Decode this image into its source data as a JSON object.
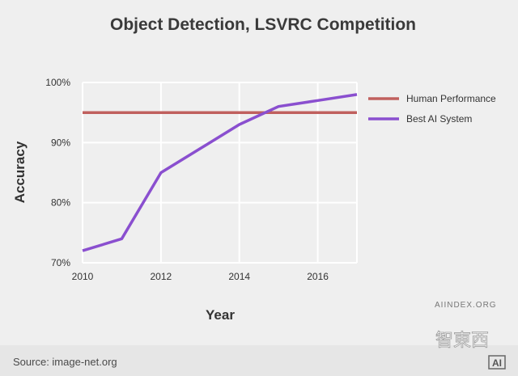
{
  "chart_data": {
    "type": "line",
    "title": "Object Detection, LSVRC Competition",
    "xlabel": "Year",
    "ylabel": "Accuracy",
    "xlim": [
      2010,
      2017
    ],
    "ylim": [
      70,
      100
    ],
    "x_ticks": [
      2010,
      2012,
      2014,
      2016
    ],
    "y_ticks": [
      70,
      80,
      90,
      100
    ],
    "x_tick_labels": [
      "2010",
      "2012",
      "2014",
      "2016"
    ],
    "y_tick_labels": [
      "70%",
      "80%",
      "90%",
      "100%"
    ],
    "grid": true,
    "legend_position": "right",
    "series": [
      {
        "name": "Human Performance",
        "color": "#c0605e",
        "x": [
          2010,
          2017
        ],
        "y": [
          95,
          95
        ]
      },
      {
        "name": "Best AI System",
        "color": "#8a4fcf",
        "x": [
          2010,
          2011,
          2012,
          2013,
          2014,
          2015,
          2016,
          2017
        ],
        "y": [
          72,
          74,
          85,
          89,
          93,
          96,
          97,
          98
        ]
      }
    ]
  },
  "footer": {
    "source": "Source: image-net.org",
    "watermark": "AIINDEX.ORG",
    "logo": "AI",
    "cn_mark": "智東西"
  }
}
